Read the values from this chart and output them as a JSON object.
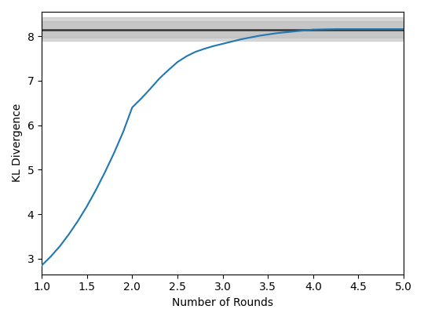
{
  "xlabel": "Number of Rounds",
  "ylabel": "KL Divergence",
  "line_color": "#1f77b4",
  "hline_value": 8.15,
  "hline_color": "#333333",
  "hband_lower": 7.9,
  "hband_upper": 8.42,
  "hband_color": "#cccccc",
  "hband_alpha": 0.8,
  "xlim": [
    1.0,
    5.0
  ],
  "ylim": [
    2.65,
    8.55
  ],
  "xticks": [
    1.0,
    1.5,
    2.0,
    2.5,
    3.0,
    3.5,
    4.0,
    4.5,
    5.0
  ],
  "yticks": [
    3,
    4,
    5,
    6,
    7,
    8
  ],
  "line_x": [
    1.0,
    1.1,
    1.2,
    1.3,
    1.4,
    1.5,
    1.6,
    1.7,
    1.8,
    1.9,
    2.0,
    2.1,
    2.2,
    2.3,
    2.4,
    2.5,
    2.6,
    2.7,
    2.8,
    2.9,
    3.0,
    3.2,
    3.4,
    3.6,
    3.8,
    4.0,
    4.25,
    4.5,
    4.75,
    5.0
  ],
  "line_y": [
    2.85,
    3.05,
    3.28,
    3.55,
    3.85,
    4.18,
    4.55,
    4.95,
    5.38,
    5.85,
    6.4,
    6.6,
    6.82,
    7.05,
    7.24,
    7.42,
    7.55,
    7.65,
    7.72,
    7.78,
    7.83,
    7.93,
    8.01,
    8.07,
    8.11,
    8.15,
    8.16,
    8.16,
    8.16,
    8.16
  ]
}
